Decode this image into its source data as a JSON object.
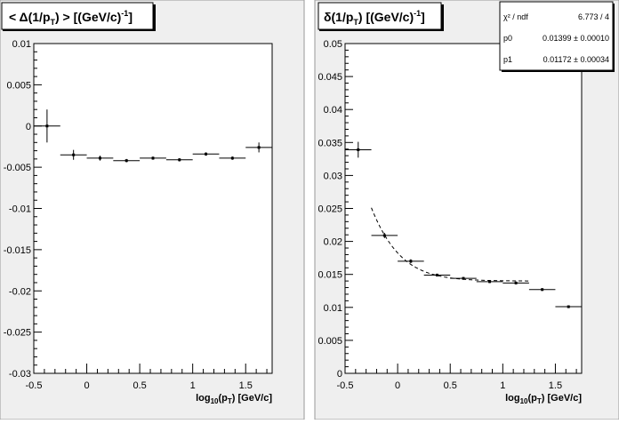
{
  "chart_data": [
    {
      "type": "scatter",
      "title": {
        "base": "< Δ(1/p",
        "sub": "T",
        "mid": ")  >   [(GeV/c)",
        "sup": "-1",
        "end": "]"
      },
      "xlabel": {
        "base": "log",
        "sub": "10",
        "mid": "(p",
        "sub2": "T",
        "end": ")  [GeV/c]"
      },
      "xlim": [
        -0.5,
        1.75
      ],
      "ylim": [
        -0.03,
        0.01
      ],
      "xticks": [
        -0.5,
        0,
        0.5,
        1,
        1.5
      ],
      "xtick_labels": [
        "-0.5",
        "0",
        "0.5",
        "1",
        "1.5"
      ],
      "yticks": [
        -0.03,
        -0.025,
        -0.02,
        -0.015,
        -0.01,
        -0.005,
        0,
        0.005,
        0.01
      ],
      "ytick_labels": [
        "-0.03",
        "-0.025",
        "-0.02",
        "-0.015",
        "-0.01",
        "-0.005",
        "0",
        "0.005",
        "0.01"
      ],
      "points": [
        {
          "x": -0.375,
          "xerr": 0.125,
          "y": 0.0,
          "yerr": 0.002
        },
        {
          "x": -0.125,
          "xerr": 0.125,
          "y": -0.0035,
          "yerr": 0.0006
        },
        {
          "x": 0.125,
          "xerr": 0.125,
          "y": -0.0039,
          "yerr": 0.0003
        },
        {
          "x": 0.375,
          "xerr": 0.125,
          "y": -0.0042,
          "yerr": 0.0002
        },
        {
          "x": 0.625,
          "xerr": 0.125,
          "y": -0.0039,
          "yerr": 0.0002
        },
        {
          "x": 0.875,
          "xerr": 0.125,
          "y": -0.0041,
          "yerr": 0.0002
        },
        {
          "x": 1.125,
          "xerr": 0.125,
          "y": -0.0034,
          "yerr": 0.0002
        },
        {
          "x": 1.375,
          "xerr": 0.125,
          "y": -0.0039,
          "yerr": 0.0002
        },
        {
          "x": 1.625,
          "xerr": 0.125,
          "y": -0.0026,
          "yerr": 0.0006
        }
      ]
    },
    {
      "type": "scatter",
      "title": {
        "base": "δ(1/p",
        "sub": "T",
        "mid": ")  [(GeV/c)",
        "sup": "-1",
        "end": "]"
      },
      "xlabel": {
        "base": "log",
        "sub": "10",
        "mid": "(p",
        "sub2": "T",
        "end": ")  [GeV/c]"
      },
      "xlim": [
        -0.5,
        1.75
      ],
      "ylim": [
        0,
        0.05
      ],
      "xticks": [
        -0.5,
        0,
        0.5,
        1,
        1.5
      ],
      "xtick_labels": [
        "-0.5",
        "0",
        "0.5",
        "1",
        "1.5"
      ],
      "yticks": [
        0,
        0.005,
        0.01,
        0.015,
        0.02,
        0.025,
        0.03,
        0.035,
        0.04,
        0.045,
        0.05
      ],
      "ytick_labels": [
        "0",
        "0.005",
        "0.01",
        "0.015",
        "0.02",
        "0.025",
        "0.03",
        "0.035",
        "0.04",
        "0.045",
        "0.05"
      ],
      "points": [
        {
          "x": -0.375,
          "xerr": 0.125,
          "y": 0.0339,
          "yerr": 0.0012
        },
        {
          "x": -0.125,
          "xerr": 0.125,
          "y": 0.0209,
          "yerr": 0.0004
        },
        {
          "x": 0.125,
          "xerr": 0.125,
          "y": 0.017,
          "yerr": 0.0003
        },
        {
          "x": 0.375,
          "xerr": 0.125,
          "y": 0.0149,
          "yerr": 0.0002
        },
        {
          "x": 0.625,
          "xerr": 0.125,
          "y": 0.0144,
          "yerr": 0.0002
        },
        {
          "x": 0.875,
          "xerr": 0.125,
          "y": 0.0139,
          "yerr": 0.0002
        },
        {
          "x": 1.125,
          "xerr": 0.125,
          "y": 0.0137,
          "yerr": 0.0002
        },
        {
          "x": 1.375,
          "xerr": 0.125,
          "y": 0.0127,
          "yerr": 0.0002
        },
        {
          "x": 1.625,
          "xerr": 0.125,
          "y": 0.0101,
          "yerr": 0.0002
        }
      ],
      "fit": {
        "function": "sqrt(p0^2 + p1^2 / 10^(2x))",
        "p0": 0.01399,
        "p1": 0.01172,
        "xrange": [
          -0.25,
          1.25
        ]
      },
      "stats": [
        {
          "label": "χ² / ndf",
          "value": "6.773 / 4"
        },
        {
          "label": "p0",
          "value": "0.01399 ± 0.00010"
        },
        {
          "label": "p1",
          "value": "0.01172 ± 0.00034"
        }
      ]
    }
  ]
}
